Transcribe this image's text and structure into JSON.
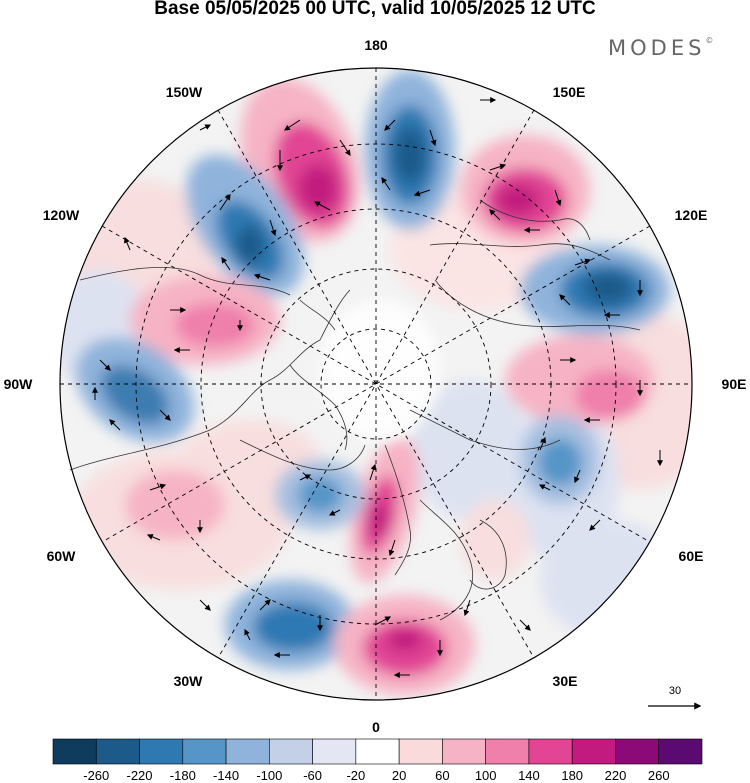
{
  "header": {
    "title": "Base 05/05/2025 00 UTC, valid 10/05/2025 12 UTC",
    "brand": "MODES"
  },
  "map": {
    "projection": "polar stereographic (north pole)",
    "longitude_labels": {
      "top": "180",
      "upper_left": "150W",
      "upper_right": "150E",
      "left_upper": "120W",
      "right_upper": "120E",
      "left": "90W",
      "right": "90E",
      "left_lower": "60W",
      "right_lower": "60E",
      "lower_left": "30W",
      "lower_right": "30E",
      "bottom": "0"
    },
    "reference_vector_label": "30",
    "anomaly_centers": [
      {
        "name": "positive-anomaly-north-pacific-west",
        "sign": "positive",
        "color": "#d83a8c"
      },
      {
        "name": "negative-anomaly-near-180",
        "sign": "negative",
        "color": "#1f5f8f"
      },
      {
        "name": "positive-anomaly-east-siberia",
        "sign": "positive",
        "color": "#c2157e"
      },
      {
        "name": "negative-anomaly-gulf-of-alaska",
        "sign": "negative",
        "color": "#185a89"
      },
      {
        "name": "negative-anomaly-north-asia",
        "sign": "negative",
        "color": "#185a89"
      },
      {
        "name": "positive-anomaly-canada",
        "sign": "positive",
        "color": "#e06a9f"
      },
      {
        "name": "negative-anomaly-us",
        "sign": "negative",
        "color": "#3e7bb1"
      },
      {
        "name": "positive-anomaly-siberia-90e",
        "sign": "positive",
        "color": "#e06a9f"
      },
      {
        "name": "negative-anomaly-central-asia",
        "sign": "negative",
        "color": "#5a8fc2"
      },
      {
        "name": "positive-anomaly-scandinavia",
        "sign": "positive",
        "color": "#c51f84"
      },
      {
        "name": "negative-anomaly-north-atlantic",
        "sign": "negative",
        "color": "#2f6fa6"
      },
      {
        "name": "positive-anomaly-eastern-atlantic",
        "sign": "positive",
        "color": "#c9266f"
      }
    ]
  },
  "colorbar": {
    "labels": [
      "-260",
      "-220",
      "-180",
      "-140",
      "-100",
      "-60",
      "-20",
      "20",
      "60",
      "100",
      "140",
      "180",
      "220",
      "260"
    ],
    "colors": [
      "#0f3b5c",
      "#1c5a8a",
      "#2f79b3",
      "#5595c8",
      "#8fb3db",
      "#c3d0e8",
      "#e4e6f3",
      "#ffffff",
      "#fadada",
      "#f6b3c5",
      "#ef7fab",
      "#e14594",
      "#c21a7f",
      "#8c0a77",
      "#5b0a72"
    ]
  }
}
